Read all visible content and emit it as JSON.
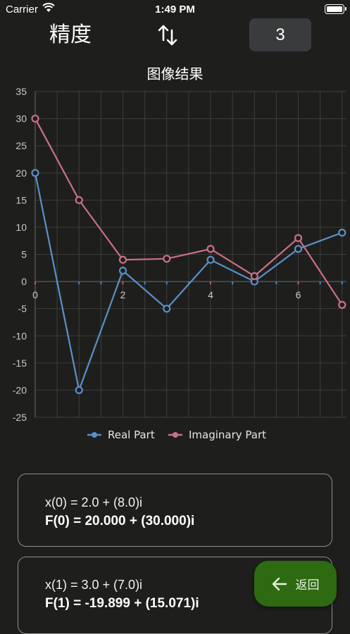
{
  "status": {
    "carrier": "Carrier",
    "time": "1:49 PM"
  },
  "header": {
    "precision_label": "精度",
    "precision_value": "3",
    "swap_icon": "swap-vert-icon"
  },
  "chart_title": "图像结果",
  "chart_data": {
    "type": "line",
    "x": [
      0,
      1,
      2,
      3,
      4,
      5,
      6,
      7
    ],
    "series": [
      {
        "name": "Real Part",
        "color": "#5b8fc9",
        "values": [
          20,
          -20,
          2,
          -5,
          4,
          0,
          6,
          9
        ]
      },
      {
        "name": "Imaginary Part",
        "color": "#cc6f87",
        "values": [
          30,
          15,
          4,
          4.2,
          6,
          1,
          8,
          -4.3
        ]
      }
    ],
    "xticks": [
      "0",
      "2",
      "4",
      "6"
    ],
    "yticks": [
      "35",
      "30",
      "25",
      "20",
      "15",
      "10",
      "5",
      "0",
      "-5",
      "-10",
      "-15",
      "-20",
      "-25"
    ],
    "ylim": [
      -25,
      35
    ],
    "xlim": [
      0,
      7.1
    ],
    "grid": true,
    "legend": "bottom"
  },
  "results": [
    {
      "x": "x(0) =  2.0 + (8.0)i",
      "f": "F(0) =  20.000 + (30.000)i"
    },
    {
      "x": "x(1) =  3.0 + (7.0)i",
      "f": "F(1) = -19.899 + (15.071)i"
    }
  ],
  "back_button": {
    "label": "返回",
    "icon": "arrow-left-icon"
  }
}
